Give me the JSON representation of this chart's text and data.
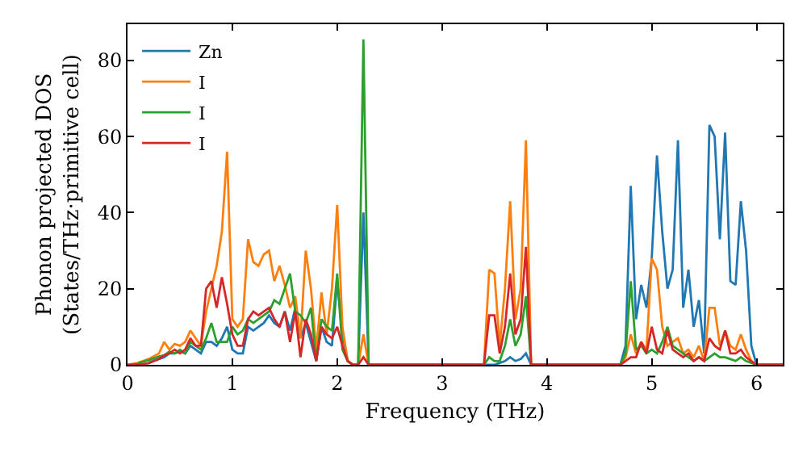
{
  "chart_data": {
    "type": "line",
    "xlabel": "Frequency (THz)",
    "ylabel": "Phonon projected DOS\n(States/THz·primitive cell)",
    "x": [
      0,
      0.1,
      0.2,
      0.3,
      0.35,
      0.4,
      0.45,
      0.5,
      0.55,
      0.6,
      0.65,
      0.7,
      0.75,
      0.8,
      0.85,
      0.9,
      0.95,
      1.0,
      1.05,
      1.1,
      1.15,
      1.2,
      1.25,
      1.3,
      1.35,
      1.4,
      1.45,
      1.5,
      1.55,
      1.6,
      1.65,
      1.7,
      1.75,
      1.8,
      1.85,
      1.9,
      1.95,
      2.0,
      2.05,
      2.1,
      2.15,
      2.2,
      2.25,
      2.3,
      3.4,
      3.45,
      3.5,
      3.55,
      3.6,
      3.65,
      3.7,
      3.75,
      3.8,
      3.85,
      4.7,
      4.75,
      4.8,
      4.85,
      4.9,
      4.95,
      5.0,
      5.05,
      5.1,
      5.15,
      5.2,
      5.25,
      5.3,
      5.35,
      5.4,
      5.45,
      5.5,
      5.55,
      5.6,
      5.65,
      5.7,
      5.75,
      5.8,
      5.85,
      5.9,
      5.95,
      6.0,
      6.25
    ],
    "series": [
      {
        "name": "Zn",
        "color": "#1f77b4",
        "values": [
          null,
          null,
          0.5,
          1.5,
          2,
          3,
          3,
          3.5,
          3,
          5,
          4,
          3,
          6,
          6,
          5,
          7,
          10,
          4,
          3,
          3,
          10,
          9,
          10,
          11,
          13,
          11,
          10,
          14,
          9,
          15,
          7,
          11,
          6,
          1,
          10,
          6,
          5,
          22,
          8,
          1,
          0,
          0,
          40,
          0,
          0,
          0,
          0,
          0.5,
          1,
          2,
          1,
          1.5,
          3,
          0,
          0,
          5,
          47,
          12,
          21,
          15,
          28,
          55,
          35,
          20,
          25,
          59,
          15,
          25,
          10,
          17,
          3,
          63,
          60,
          33,
          61,
          22,
          21,
          43,
          30,
          5,
          0,
          0
        ]
      },
      {
        "name": "I",
        "color": "#ff7f0e",
        "values": [
          0,
          0.5,
          1.5,
          3,
          6,
          4,
          5.5,
          5,
          6,
          9,
          7,
          5,
          14,
          20,
          26,
          35,
          56,
          12,
          10,
          12,
          33,
          27,
          26,
          29,
          30,
          22,
          26,
          21,
          15,
          18,
          7,
          30,
          20,
          4,
          19,
          8,
          20,
          42,
          10,
          1,
          0,
          0,
          8,
          0,
          0,
          25,
          24,
          5,
          20,
          43,
          12,
          20,
          59,
          0,
          0,
          2,
          8,
          3,
          6,
          4,
          28,
          25,
          10,
          5,
          6,
          7,
          3,
          4,
          2,
          5,
          1,
          15,
          15,
          5,
          9,
          5,
          4,
          8,
          4,
          1,
          0,
          0
        ]
      },
      {
        "name": "I",
        "color": "#2ca02c",
        "values": [
          null,
          0.5,
          1.2,
          2.2,
          2.5,
          3.5,
          3,
          4,
          3,
          6,
          5,
          4,
          7,
          11,
          6,
          6,
          6,
          10,
          8,
          9,
          12,
          11,
          12,
          13,
          14,
          17,
          16,
          20,
          24,
          14,
          13,
          11,
          15,
          1,
          12,
          10,
          9,
          24,
          4,
          1,
          0,
          0,
          85.5,
          0,
          0,
          2,
          1,
          1,
          5,
          12,
          5,
          8,
          18,
          0,
          0,
          3,
          22,
          4,
          5,
          3,
          4,
          3,
          6,
          10,
          5,
          4,
          3,
          2,
          1,
          2,
          1,
          2,
          3,
          2,
          2,
          1.5,
          1,
          2,
          1,
          0.5,
          0,
          0
        ]
      },
      {
        "name": "I",
        "color": "#d62728",
        "values": [
          0,
          0.1,
          0.4,
          1.6,
          2.5,
          3,
          4,
          3,
          4,
          7,
          5,
          5,
          20,
          22,
          15,
          23,
          16,
          8,
          5,
          5,
          12,
          14,
          13,
          14,
          15,
          12,
          10,
          14,
          6,
          14,
          2,
          12,
          8,
          1,
          10,
          8,
          7,
          10,
          5,
          1,
          0,
          0,
          2,
          0,
          0,
          13,
          13,
          3,
          10,
          24,
          8,
          12,
          31,
          0,
          0,
          1,
          2,
          2,
          6,
          3,
          10,
          4,
          3,
          9,
          4,
          3,
          2,
          3,
          1,
          2,
          1,
          7,
          5,
          4,
          9,
          3,
          3,
          4,
          2,
          1,
          0,
          0
        ]
      }
    ],
    "xlim": [
      0,
      6.25
    ],
    "xticks": [
      0,
      1,
      2,
      3,
      4,
      5,
      6
    ],
    "ylim": [
      0,
      89.5
    ],
    "yticks": [
      0,
      20,
      40,
      60,
      80
    ],
    "legend": "top left",
    "marker": "none",
    "line_style": "solid",
    "grid": false
  }
}
